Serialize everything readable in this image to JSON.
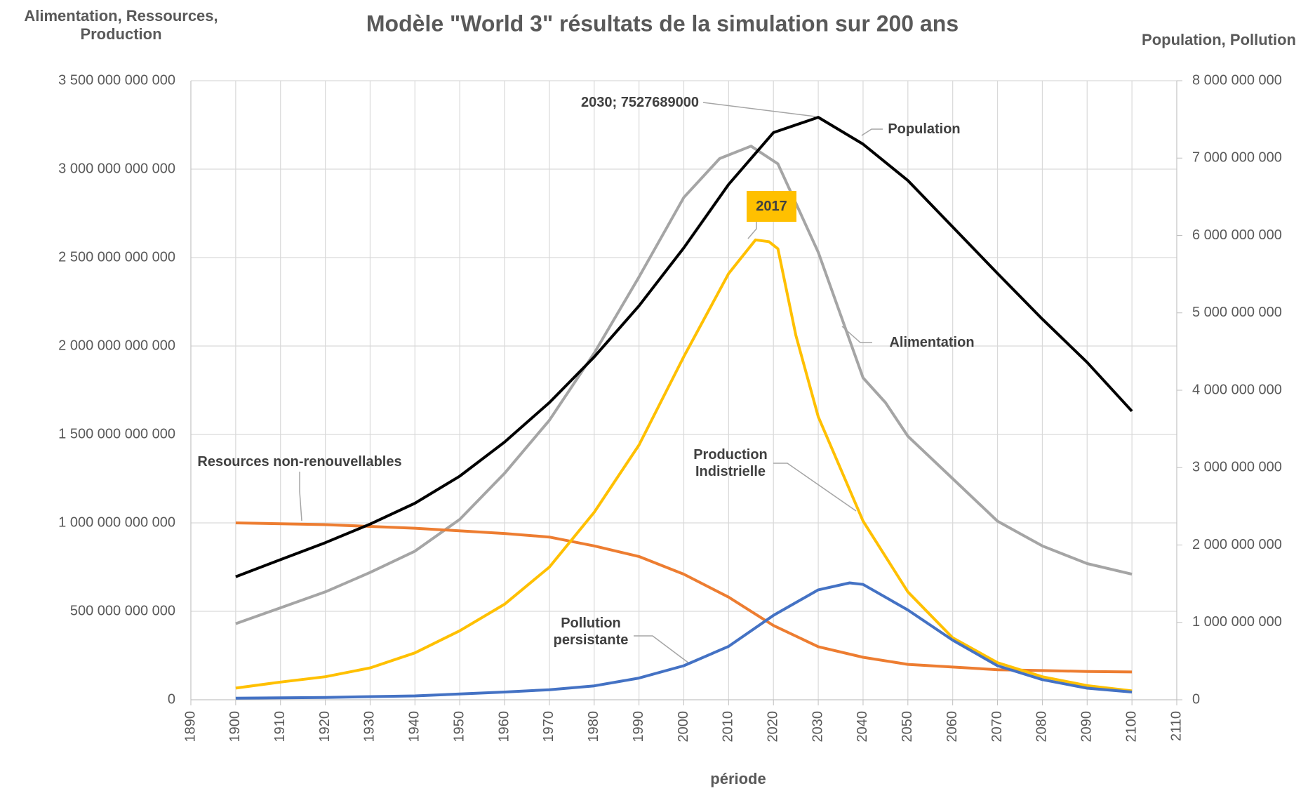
{
  "chart_data": {
    "type": "line",
    "title": "Modèle \"World 3\" résultats de la simulation sur 200 ans",
    "y_axis_label": "Alimentation, Ressources, Production",
    "y2_axis_label": "Population, Pollution",
    "x_axis_label": "période",
    "xlim": [
      1890,
      2110
    ],
    "xticks": [
      1890,
      1900,
      1910,
      1920,
      1930,
      1940,
      1950,
      1960,
      1970,
      1980,
      1990,
      2000,
      2010,
      2020,
      2030,
      2040,
      2050,
      2060,
      2070,
      2080,
      2090,
      2100,
      2110
    ],
    "ylim": [
      0,
      3500000000000
    ],
    "yticks": [
      0,
      {
        "value": 500000000000,
        "label": "500 000 000 000"
      },
      {
        "value": 1000000000000,
        "label": "1 000 000 000 000"
      },
      {
        "value": 1500000000000,
        "label": "1 500 000 000 000"
      },
      {
        "value": 2000000000000,
        "label": "2 000 000 000 000"
      },
      {
        "value": 2500000000000,
        "label": "2 500 000 000 000"
      },
      {
        "value": 3000000000000,
        "label": "3 000 000 000 000"
      },
      {
        "value": 3500000000000,
        "label": "3 500 000 000 000"
      }
    ],
    "y2lim": [
      0,
      8000000000
    ],
    "y2ticks": [
      0,
      {
        "value": 1000000000,
        "label": "1 000 000 000"
      },
      {
        "value": 2000000000,
        "label": "2 000 000 000"
      },
      {
        "value": 3000000000,
        "label": "3 000 000 000"
      },
      {
        "value": 4000000000,
        "label": "4 000 000 000"
      },
      {
        "value": 5000000000,
        "label": "5 000 000 000"
      },
      {
        "value": 6000000000,
        "label": "6 000 000 000"
      },
      {
        "value": 7000000000,
        "label": "7 000 000 000"
      },
      {
        "value": 8000000000,
        "label": "8 000 000 000"
      }
    ],
    "grid": true,
    "series": [
      {
        "name": "Alimentation",
        "color": "#a5a5a5",
        "axis": "y",
        "x": [
          1900,
          1910,
          1920,
          1930,
          1940,
          1950,
          1960,
          1970,
          1980,
          1990,
          2000,
          2008,
          2015,
          2021,
          2030,
          2040,
          2045,
          2050,
          2060,
          2070,
          2080,
          2090,
          2100
        ],
        "values": [
          430000000000,
          520000000000,
          610000000000,
          720000000000,
          840000000000,
          1020000000000,
          1280000000000,
          1580000000000,
          1960000000000,
          2390000000000,
          2840000000000,
          3060000000000,
          3130000000000,
          3030000000000,
          2530000000000,
          1820000000000,
          1680000000000,
          1490000000000,
          1250000000000,
          1010000000000,
          870000000000,
          770000000000,
          710000000000
        ]
      },
      {
        "name": "Resources non-renouvellables",
        "color": "#ed7d31",
        "axis": "y",
        "x": [
          1900,
          1920,
          1940,
          1960,
          1970,
          1980,
          1990,
          2000,
          2010,
          2020,
          2030,
          2040,
          2050,
          2060,
          2070,
          2080,
          2090,
          2100
        ],
        "values": [
          1000000000000,
          990000000000,
          970000000000,
          940000000000,
          920000000000,
          870000000000,
          810000000000,
          710000000000,
          580000000000,
          420000000000,
          300000000000,
          240000000000,
          200000000000,
          185000000000,
          170000000000,
          165000000000,
          160000000000,
          157000000000
        ]
      },
      {
        "name": "Production Indistrielle",
        "color": "#ffc000",
        "axis": "y",
        "x": [
          1900,
          1910,
          1920,
          1930,
          1940,
          1950,
          1960,
          1970,
          1980,
          1990,
          2000,
          2010,
          2016,
          2019,
          2021,
          2025,
          2030,
          2040,
          2050,
          2060,
          2070,
          2080,
          2090,
          2100
        ],
        "values": [
          66000000000,
          100000000000,
          130000000000,
          180000000000,
          265000000000,
          390000000000,
          540000000000,
          750000000000,
          1060000000000,
          1440000000000,
          1940000000000,
          2410000000000,
          2600000000000,
          2590000000000,
          2550000000000,
          2060000000000,
          1600000000000,
          1010000000000,
          610000000000,
          350000000000,
          210000000000,
          130000000000,
          80000000000,
          50000000000
        ]
      },
      {
        "name": "Population",
        "color": "#000000",
        "axis": "y2",
        "x": [
          1900,
          1910,
          1920,
          1930,
          1940,
          1950,
          1960,
          1970,
          1980,
          1990,
          2000,
          2010,
          2020,
          2030,
          2040,
          2050,
          2060,
          2070,
          2080,
          2090,
          2100
        ],
        "values": [
          1590000000,
          1810000000,
          2030000000,
          2270000000,
          2540000000,
          2890000000,
          3330000000,
          3840000000,
          4430000000,
          5090000000,
          5840000000,
          6660000000,
          7330000000,
          7527689000,
          7180000000,
          6710000000,
          6110000000,
          5510000000,
          4920000000,
          4360000000,
          3730000000
        ]
      },
      {
        "name": "Pollution persistante",
        "color": "#4472c4",
        "axis": "y2",
        "x": [
          1900,
          1920,
          1940,
          1960,
          1970,
          1980,
          1990,
          2000,
          2010,
          2020,
          2030,
          2037,
          2040,
          2050,
          2060,
          2070,
          2080,
          2090,
          2100
        ],
        "values": [
          20000000,
          30000000,
          50000000,
          100000000,
          130000000,
          180000000,
          280000000,
          440000000,
          690000000,
          1090000000,
          1420000000,
          1510000000,
          1490000000,
          1160000000,
          770000000,
          440000000,
          260000000,
          150000000,
          100000000
        ]
      }
    ],
    "annotations": [
      "2030; 7527689000",
      "2017"
    ]
  }
}
